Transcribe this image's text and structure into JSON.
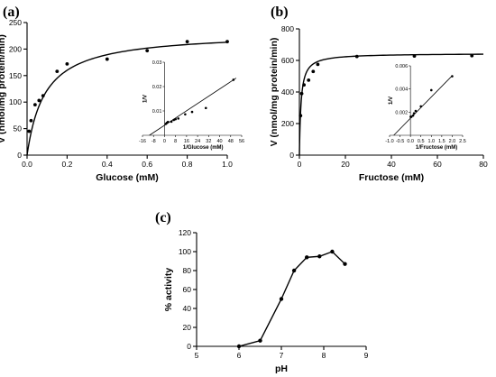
{
  "chart_data": [
    {
      "id": "a",
      "panel_label": "(a)",
      "type": "scatter",
      "xlabel": "Glucose (mM)",
      "ylabel": "V (nmol/mg protein/min)",
      "xlim": [
        0.0,
        1.0
      ],
      "ylim": [
        0,
        250
      ],
      "x_ticks": [
        "0.0",
        "0.2",
        "0.4",
        "0.6",
        "0.8",
        "1.0"
      ],
      "y_ticks": [
        "0",
        "50",
        "100",
        "150",
        "200",
        "250"
      ],
      "fit": {
        "model": "Michaelis-Menten",
        "vmax": 232,
        "km": 0.09
      },
      "points": {
        "x": [
          0.01,
          0.02,
          0.04,
          0.06,
          0.08,
          0.15,
          0.2,
          0.4,
          0.6,
          0.8,
          1.0
        ],
        "y": [
          45,
          65,
          95,
          103,
          112,
          158,
          172,
          181,
          197,
          214,
          214
        ]
      },
      "inset": {
        "type": "scatter",
        "xlabel": "1/Glucose (mM)",
        "ylabel": "1/V",
        "xlim": [
          -16,
          56
        ],
        "ylim": [
          0,
          0.03
        ],
        "x_ticks": [
          "-16",
          "-8",
          "0",
          "8",
          "16",
          "24",
          "32",
          "40",
          "48",
          "56"
        ],
        "y_ticks": [
          "0.01",
          "0.02",
          "0.03"
        ],
        "line": {
          "x": [
            -11,
            52
          ],
          "y": [
            0,
            0.0235
          ]
        },
        "points": {
          "x": [
            1,
            1.7,
            2.5,
            5,
            6.7,
            8,
            10,
            15,
            20,
            30,
            50
          ],
          "y": [
            0.0047,
            0.0051,
            0.0055,
            0.0056,
            0.0063,
            0.0066,
            0.0069,
            0.0086,
            0.0096,
            0.0112,
            0.0228
          ]
        }
      }
    },
    {
      "id": "b",
      "panel_label": "(b)",
      "type": "scatter",
      "xlabel": "Fructose (mM)",
      "ylabel": "V (nmol/mg protein/min)",
      "xlim": [
        0,
        80
      ],
      "ylim": [
        0,
        800
      ],
      "x_ticks": [
        "0",
        "20",
        "40",
        "60",
        "80"
      ],
      "y_ticks": [
        "0",
        "200",
        "400",
        "600",
        "800"
      ],
      "fit": {
        "model": "Michaelis-Menten",
        "vmax": 645,
        "km": 0.7
      },
      "points": {
        "x": [
          0.5,
          1,
          2,
          4,
          6,
          8,
          25,
          50,
          75
        ],
        "y": [
          250,
          390,
          445,
          475,
          530,
          575,
          625,
          628,
          630
        ]
      },
      "inset": {
        "type": "scatter",
        "xlabel": "1/Fructose (mM)",
        "ylabel": "1/V",
        "xlim": [
          -1.0,
          2.5
        ],
        "ylim": [
          0,
          0.006
        ],
        "x_ticks": [
          "-1.0",
          "-0.5",
          "0.0",
          "0.5",
          "1.0",
          "1.5",
          "2.0",
          "2.5"
        ],
        "y_ticks": [
          "0.002",
          "0.004",
          "0.006"
        ],
        "line": {
          "x": [
            -0.8,
            2.0
          ],
          "y": [
            0,
            0.00515
          ]
        },
        "points": {
          "x": [
            0.013,
            0.02,
            0.04,
            0.125,
            0.17,
            0.25,
            0.5,
            1.0,
            2.0
          ],
          "y": [
            0.0016,
            0.0016,
            0.0016,
            0.0017,
            0.0019,
            0.0021,
            0.0025,
            0.0039,
            0.0051
          ]
        }
      }
    },
    {
      "id": "c",
      "panel_label": "(c)",
      "type": "line",
      "xlabel": "pH",
      "ylabel": "% activity",
      "xlim": [
        5,
        9
      ],
      "ylim": [
        0,
        120
      ],
      "x_ticks": [
        "5",
        "6",
        "7",
        "8",
        "9"
      ],
      "y_ticks": [
        "0",
        "20",
        "40",
        "60",
        "80",
        "100",
        "120"
      ],
      "points": {
        "x": [
          6.0,
          6.5,
          7.0,
          7.3,
          7.6,
          7.9,
          8.2,
          8.5
        ],
        "y": [
          0,
          6,
          50,
          80,
          94,
          95,
          100,
          87
        ]
      }
    }
  ]
}
